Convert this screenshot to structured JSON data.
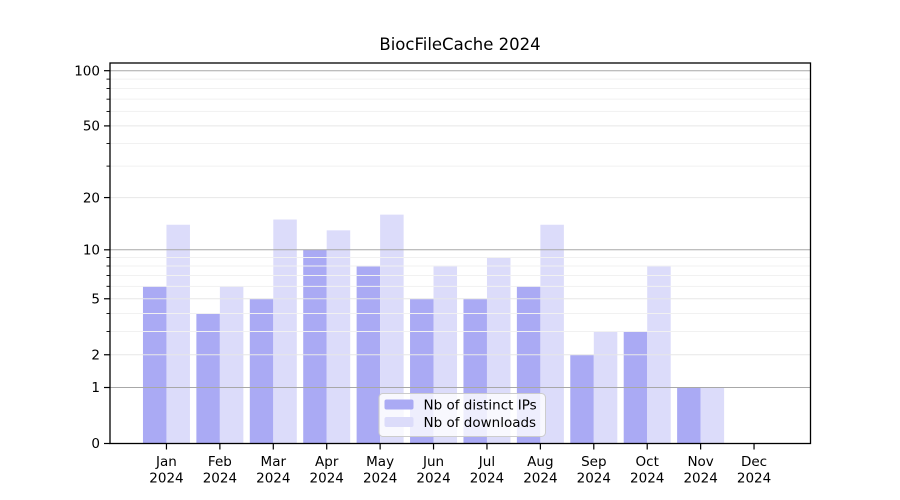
{
  "chart_data": {
    "type": "bar",
    "title": "BiocFileCache 2024",
    "categories": [
      "Jan 2024",
      "Feb 2024",
      "Mar 2024",
      "Apr 2024",
      "May 2024",
      "Jun 2024",
      "Jul 2024",
      "Aug 2024",
      "Sep 2024",
      "Oct 2024",
      "Nov 2024",
      "Dec 2024"
    ],
    "series": [
      {
        "name": "Nb of distinct IPs",
        "color": "#aaaaf4",
        "values": [
          6,
          4,
          5,
          10,
          8,
          5,
          5,
          6,
          2,
          3,
          1,
          0
        ]
      },
      {
        "name": "Nb of downloads",
        "color": "#dcdcfa",
        "values": [
          14,
          6,
          15,
          13,
          16,
          8,
          9,
          14,
          3,
          8,
          1,
          0
        ]
      }
    ],
    "xlabel": "",
    "ylabel": "",
    "y_scale": "log1p",
    "ylim": [
      0,
      100
    ],
    "y_ticks": [
      0,
      1,
      2,
      5,
      10,
      20,
      50,
      100
    ],
    "y_minor_ticks": [
      3,
      4,
      6,
      7,
      8,
      9,
      30,
      40,
      60,
      70,
      80,
      90
    ],
    "grid": "horizontal",
    "legend_position": "lower center",
    "colors": {
      "decade_gridline": "#a8a8a8",
      "labeled_gridline": "#e7e7e7",
      "minor_gridline": "#f1f1f1",
      "axis": "#000000",
      "legend_border": "#cccccc",
      "legend_background": "#ffffff"
    }
  }
}
